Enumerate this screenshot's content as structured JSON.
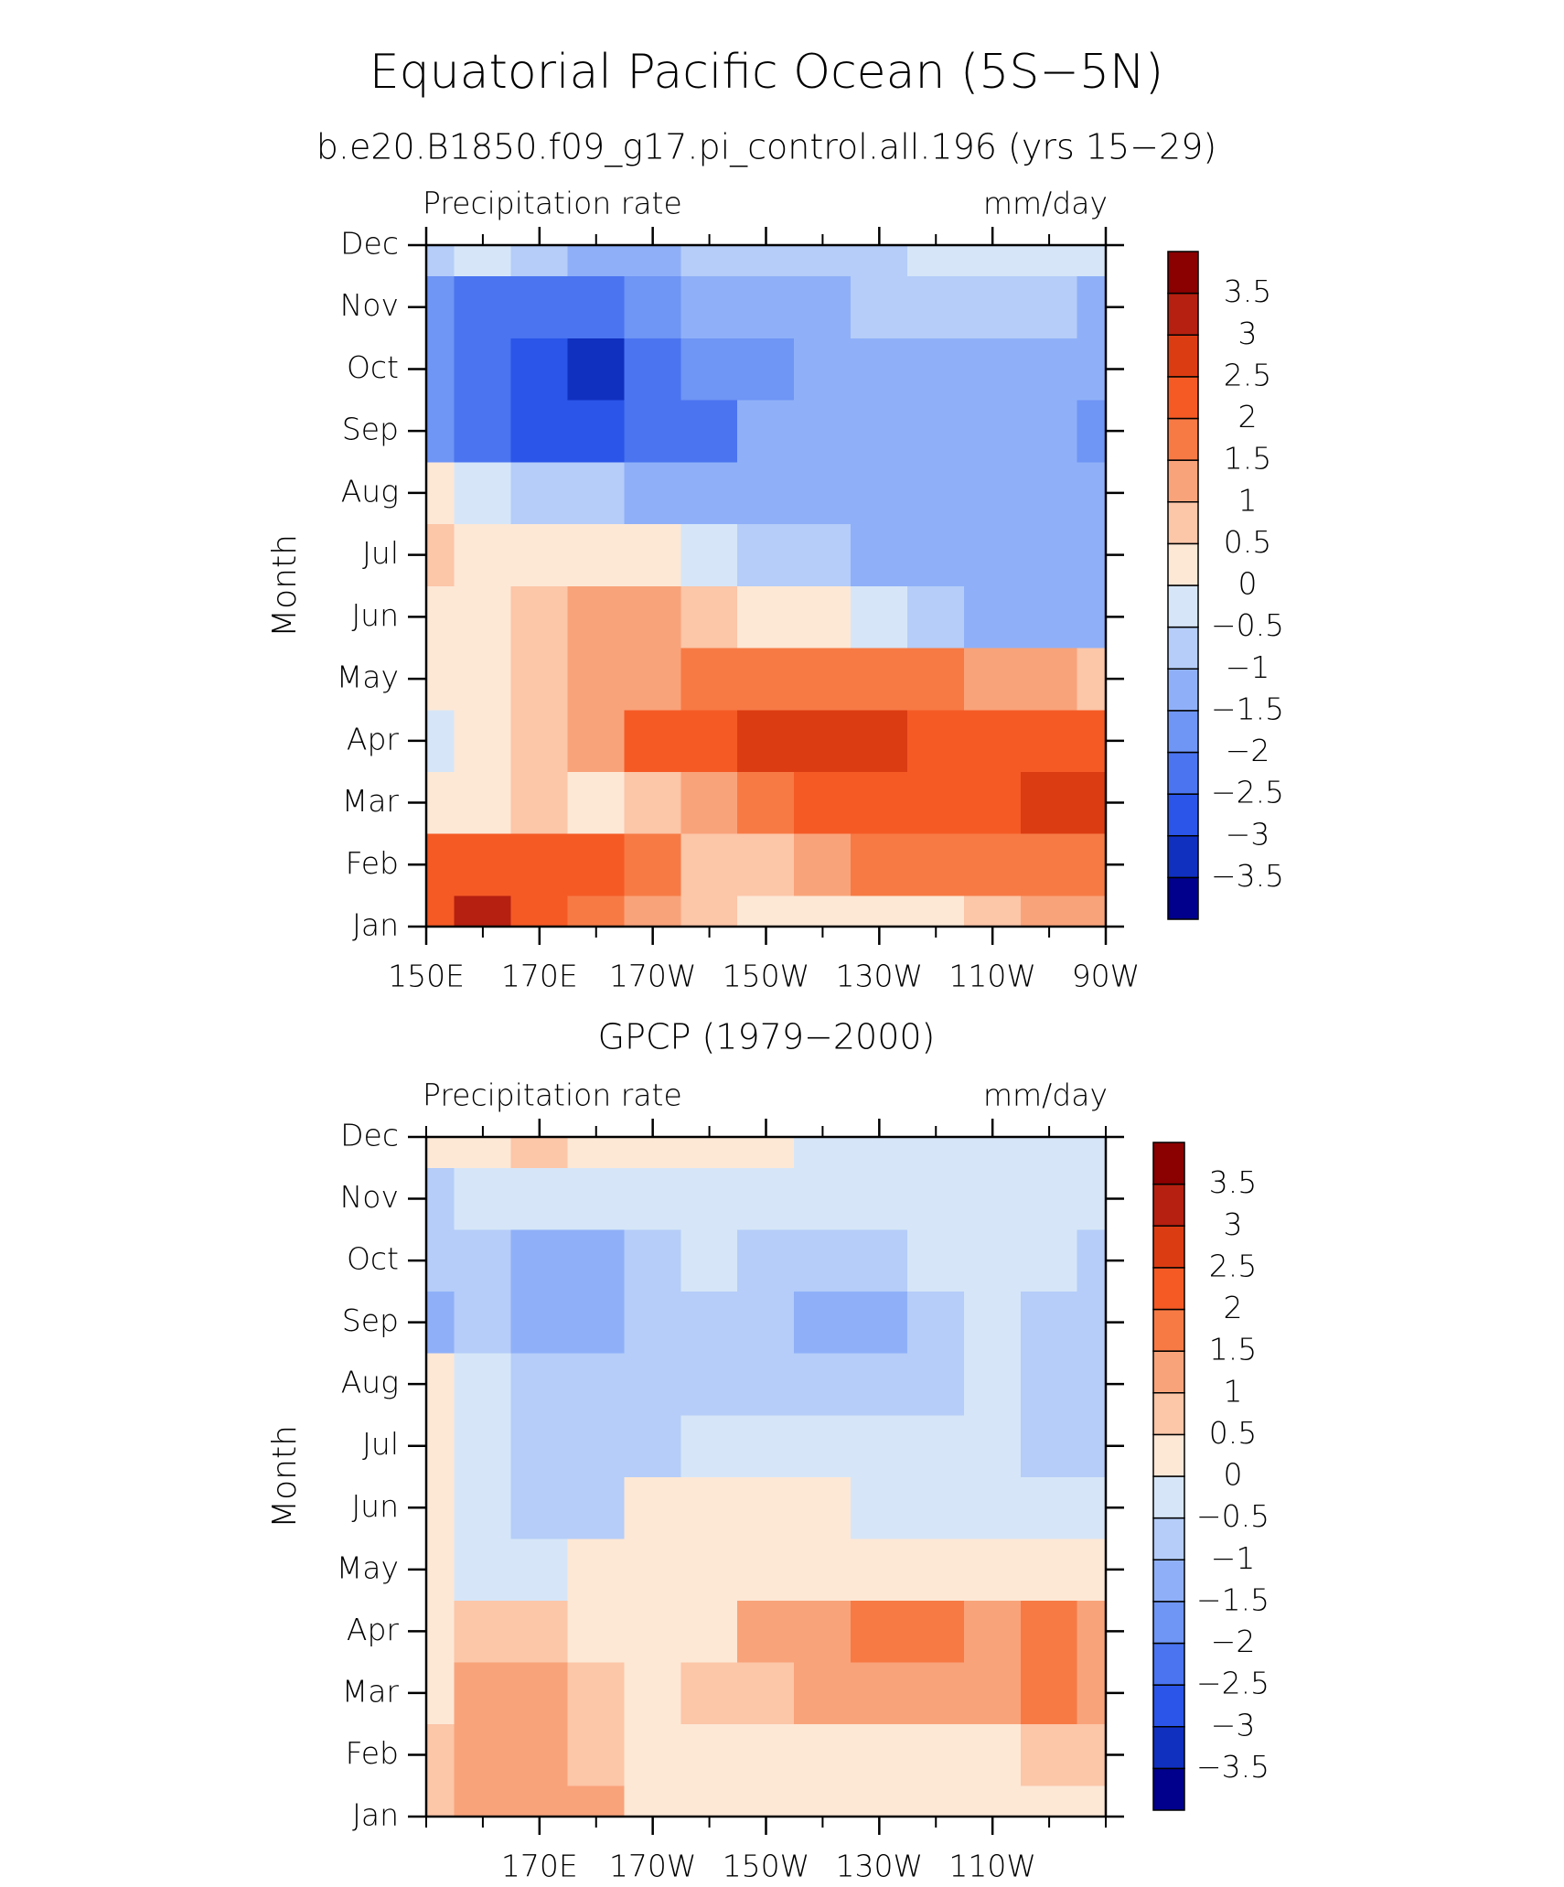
{
  "title": "Equatorial Pacific Ocean (5S−5N)",
  "chart_data": [
    {
      "type": "contour",
      "title": "b.e20.B1850.f09_g17.pi_control.all.196 (yrs 15−29)",
      "variable": "Precipitation rate",
      "units": "mm/day",
      "ylabel": "Month",
      "categories": [
        "Jan",
        "Feb",
        "Mar",
        "Apr",
        "May",
        "Jun",
        "Jul",
        "Aug",
        "Sep",
        "Oct",
        "Nov",
        "Dec"
      ],
      "x": [
        150,
        160,
        170,
        180,
        190,
        200,
        210,
        220,
        230,
        240,
        250,
        260,
        270
      ],
      "xlim": [
        150,
        270
      ],
      "xticks": [
        {
          "value": 150,
          "label": "150E"
        },
        {
          "value": 170,
          "label": "170E"
        },
        {
          "value": 190,
          "label": "170W"
        },
        {
          "value": 210,
          "label": "150W"
        },
        {
          "value": 230,
          "label": "130W"
        },
        {
          "value": 250,
          "label": "110W"
        },
        {
          "value": 270,
          "label": "90W"
        }
      ],
      "xminorticks": [
        160,
        180,
        200,
        220,
        240,
        260
      ],
      "levels": [
        {
          "value": -3.5,
          "label": "−3.5"
        },
        {
          "value": -3,
          "label": "−3"
        },
        {
          "value": -2.5,
          "label": "−2.5"
        },
        {
          "value": -2,
          "label": "−2"
        },
        {
          "value": -1.5,
          "label": "−1.5"
        },
        {
          "value": -1,
          "label": "−1"
        },
        {
          "value": -0.5,
          "label": "−0.5"
        },
        0,
        0.5,
        1,
        1.5,
        2,
        2.5,
        3,
        3.5
      ],
      "colors": [
        "#00008c",
        "#1030c0",
        "#2a55e8",
        "#4a74f0",
        "#6f95f5",
        "#8fb0f8",
        "#b5cdf8",
        "#d6e6f8",
        "#fde8d6",
        "#fcc6a8",
        "#f9a37a",
        "#f77a45",
        "#f55a25",
        "#dc3c12",
        "#b52010",
        "#8b0000"
      ],
      "values": [
        [
          2.5,
          3.5,
          2.5,
          2,
          1.5,
          1,
          0.5,
          0.5,
          0.5,
          0.5,
          1,
          1.5,
          1.5
        ],
        [
          2.5,
          2.5,
          2.5,
          2.5,
          2,
          1,
          1,
          1.5,
          2,
          2,
          2,
          2,
          2
        ],
        [
          0.5,
          0.5,
          1,
          0.5,
          1,
          1.5,
          2,
          2.5,
          2.5,
          2.5,
          2.5,
          3,
          3
        ],
        [
          -0.5,
          0,
          1,
          1.5,
          2.5,
          2.5,
          3,
          3,
          3,
          2.5,
          2.5,
          2.5,
          2.5
        ],
        [
          0,
          0.5,
          1,
          1.5,
          1.5,
          2,
          2,
          2,
          2,
          2,
          1.5,
          1.5,
          1
        ],
        [
          0.5,
          0.5,
          1,
          1.5,
          1.5,
          1,
          0.5,
          0,
          -0.5,
          -1,
          -1.5,
          -1.5,
          -1.5
        ],
        [
          1,
          0.5,
          0.5,
          0.5,
          0,
          -0.5,
          -1,
          -1,
          -1.5,
          -1.5,
          -1.5,
          -1.5,
          -1.5
        ],
        [
          0.5,
          -0.5,
          -1,
          -1,
          -1.5,
          -1.5,
          -1.5,
          -1.5,
          -1.5,
          -1.5,
          -1.5,
          -1.5,
          -1.5
        ],
        [
          -2,
          -2.5,
          -3,
          -3,
          -2.5,
          -2.5,
          -1.5,
          -1.5,
          -1.5,
          -1.5,
          -1.5,
          -1.5,
          -2
        ],
        [
          -2,
          -2.5,
          -3,
          -3.5,
          -2.5,
          -2,
          -2,
          -1.5,
          -1.5,
          -1.5,
          -1.5,
          -1.5,
          -1.5
        ],
        [
          -2,
          -2.5,
          -2.5,
          -2.5,
          -2,
          -1.5,
          -1.5,
          -1.5,
          -1,
          -1,
          -1,
          -1,
          -1.5
        ],
        [
          -1,
          -0.5,
          -1,
          -1.5,
          -1.5,
          -1,
          -1,
          -1,
          -1,
          -0.5,
          -0.5,
          -0.5,
          -0.5
        ]
      ]
    },
    {
      "type": "contour",
      "title": "GPCP (1979−2000)",
      "variable": "Precipitation rate",
      "units": "mm/day",
      "ylabel": "Month",
      "categories": [
        "Jan",
        "Feb",
        "Mar",
        "Apr",
        "May",
        "Jun",
        "Jul",
        "Aug",
        "Sep",
        "Oct",
        "Nov",
        "Dec"
      ],
      "x": [
        150,
        160,
        170,
        180,
        190,
        200,
        210,
        220,
        230,
        240,
        250,
        260,
        270
      ],
      "xlim": [
        150,
        270
      ],
      "xticks": [
        {
          "value": 170,
          "label": "170E"
        },
        {
          "value": 190,
          "label": "170W"
        },
        {
          "value": 210,
          "label": "150W"
        },
        {
          "value": 230,
          "label": "130W"
        },
        {
          "value": 250,
          "label": "110W"
        }
      ],
      "xminorticks": [
        150,
        160,
        180,
        200,
        220,
        240,
        260,
        270
      ],
      "levels": [
        {
          "value": -3.5,
          "label": "−3.5"
        },
        {
          "value": -3,
          "label": "−3"
        },
        {
          "value": -2.5,
          "label": "−2.5"
        },
        {
          "value": -2,
          "label": "−2"
        },
        {
          "value": -1.5,
          "label": "−1.5"
        },
        {
          "value": -1,
          "label": "−1"
        },
        {
          "value": -0.5,
          "label": "−0.5"
        },
        0,
        0.5,
        1,
        1.5,
        2,
        2.5,
        3,
        3.5
      ],
      "colors": [
        "#00008c",
        "#1030c0",
        "#2a55e8",
        "#4a74f0",
        "#6f95f5",
        "#8fb0f8",
        "#b5cdf8",
        "#d6e6f8",
        "#fde8d6",
        "#fcc6a8",
        "#f9a37a",
        "#f77a45",
        "#f55a25",
        "#dc3c12",
        "#b52010",
        "#8b0000"
      ],
      "values": [
        [
          1,
          1.5,
          1.5,
          1.5,
          0.5,
          0.5,
          0,
          0,
          0,
          0,
          0,
          0,
          0.5
        ],
        [
          1,
          1.5,
          1.5,
          1,
          0.5,
          0,
          0.5,
          0.5,
          0.5,
          0.5,
          0.5,
          1,
          1
        ],
        [
          0.5,
          1.5,
          1.5,
          1,
          0.5,
          1,
          1,
          1.5,
          1.5,
          1.5,
          1.5,
          2,
          1.5
        ],
        [
          0,
          1,
          1,
          0.5,
          0.5,
          0.5,
          1.5,
          1.5,
          2,
          2,
          1.5,
          2,
          1.5
        ],
        [
          0,
          -0.5,
          -0.5,
          0,
          0.5,
          0.5,
          0.5,
          0.5,
          0.5,
          0.5,
          0.5,
          0.5,
          0
        ],
        [
          0.5,
          -0.5,
          -1,
          -1,
          0,
          0,
          0,
          0,
          -0.5,
          -0.5,
          -0.5,
          -0.5,
          -0.5
        ],
        [
          0.5,
          -0.5,
          -1,
          -1,
          -1,
          -0.5,
          -0.5,
          -0.5,
          -0.5,
          -0.5,
          -0.5,
          -1,
          -1
        ],
        [
          0,
          -0.5,
          -1,
          -1,
          -1,
          -1,
          -1,
          -1,
          -1,
          -1,
          -0.5,
          -1,
          -1
        ],
        [
          -1.5,
          -1,
          -1.5,
          -1.5,
          -1,
          -1,
          -1,
          -1.5,
          -1.5,
          -1,
          -0.5,
          -1,
          -1
        ],
        [
          -1,
          -1,
          -1.5,
          -1.5,
          -1,
          -0.5,
          -1,
          -1,
          -1,
          -0.5,
          -0.5,
          -0.5,
          -1
        ],
        [
          -1,
          -0.5,
          -0.5,
          -0.5,
          -0.5,
          -0.5,
          -0.5,
          -0.5,
          -0.5,
          -0.5,
          -0.5,
          -0.5,
          -0.5
        ],
        [
          0,
          0.5,
          1,
          0.5,
          0,
          0,
          0,
          -0.5,
          -0.5,
          -0.5,
          -0.5,
          -0.5,
          -0.5
        ]
      ]
    }
  ]
}
